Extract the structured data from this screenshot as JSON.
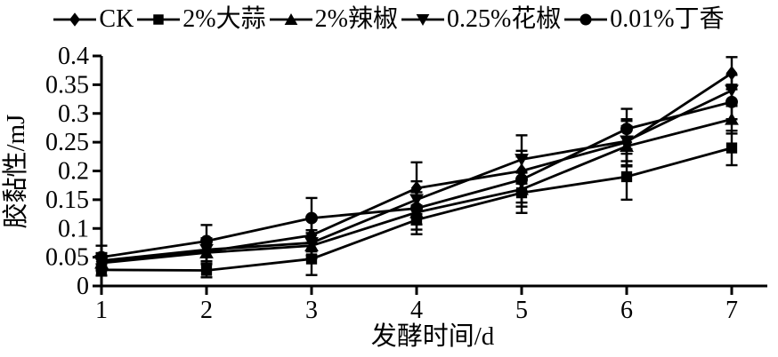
{
  "figure": {
    "background": "#ffffff",
    "ink_color": "#000000"
  },
  "chart_data": {
    "type": "line",
    "title": "",
    "xlabel": "发酵时间/d",
    "ylabel": "胶黏性/mJ",
    "x": [
      1,
      2,
      3,
      4,
      5,
      6,
      7
    ],
    "xtick_labels": [
      "1",
      "2",
      "3",
      "4",
      "5",
      "6",
      "7"
    ],
    "xlim": [
      1,
      7
    ],
    "ylim": [
      0,
      0.4
    ],
    "yticks": [
      0,
      0.05,
      0.1,
      0.15,
      0.2,
      0.25,
      0.3,
      0.35,
      0.4
    ],
    "ytick_labels": [
      "0",
      "0.05",
      "0.1",
      "0.15",
      "0.2",
      "0.25",
      "0.3",
      "0.35",
      "0.4"
    ],
    "grid": false,
    "legend_position": "top",
    "error_bars": true,
    "series": [
      {
        "name": "CK",
        "marker": "diamond",
        "color": "#000000",
        "values": [
          0.042,
          0.06,
          0.088,
          0.17,
          0.2,
          0.25,
          0.37
        ],
        "errors": [
          0.015,
          0.022,
          0.028,
          0.045,
          0.035,
          0.04,
          0.028
        ]
      },
      {
        "name": "2%大蒜",
        "marker": "square",
        "color": "#000000",
        "values": [
          0.028,
          0.027,
          0.047,
          0.115,
          0.162,
          0.19,
          0.24
        ],
        "errors": [
          0.01,
          0.012,
          0.028,
          0.025,
          0.035,
          0.04,
          0.03
        ]
      },
      {
        "name": "2%辣椒",
        "marker": "triangle-up",
        "color": "#000000",
        "values": [
          0.04,
          0.058,
          0.07,
          0.128,
          0.168,
          0.243,
          0.29
        ],
        "errors": [
          0.012,
          0.02,
          0.022,
          0.03,
          0.03,
          0.035,
          0.025
        ]
      },
      {
        "name": "0.25%花椒",
        "marker": "triangle-down",
        "color": "#000000",
        "values": [
          0.044,
          0.063,
          0.075,
          0.15,
          0.22,
          0.252,
          0.34
        ],
        "errors": [
          0.013,
          0.02,
          0.022,
          0.032,
          0.042,
          0.035,
          0.027
        ]
      },
      {
        "name": "0.01%丁香",
        "marker": "circle",
        "color": "#000000",
        "values": [
          0.05,
          0.078,
          0.118,
          0.135,
          0.185,
          0.273,
          0.32
        ],
        "errors": [
          0.02,
          0.028,
          0.035,
          0.028,
          0.04,
          0.035,
          0.03
        ]
      }
    ]
  }
}
